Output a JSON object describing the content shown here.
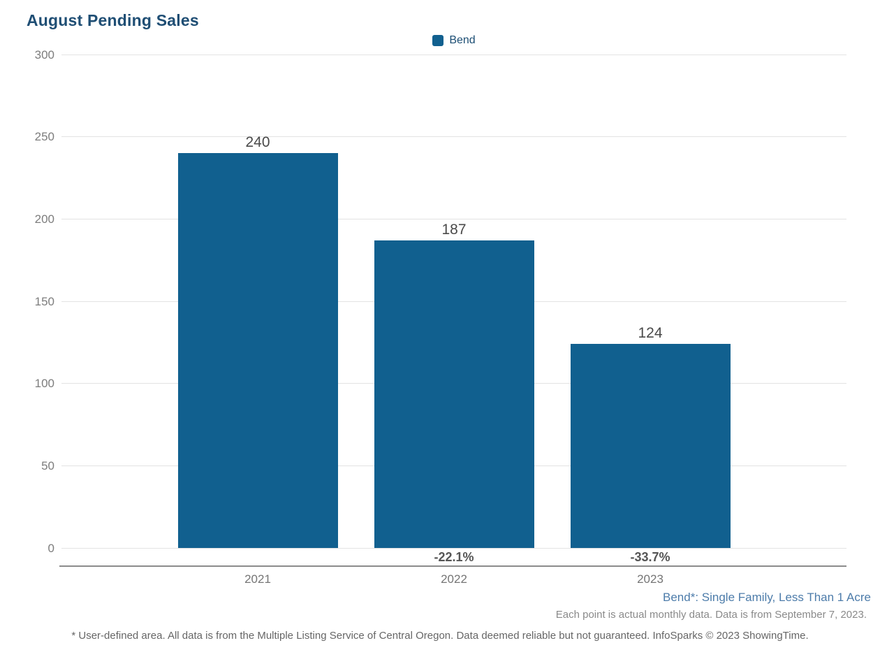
{
  "title": "August Pending Sales",
  "legend": {
    "label": "Bend",
    "swatch_color": "#11608f"
  },
  "chart_data": {
    "type": "bar",
    "title": "August Pending Sales",
    "categories": [
      "2021",
      "2022",
      "2023"
    ],
    "series": [
      {
        "name": "Bend",
        "values": [
          240,
          187,
          124
        ],
        "color": "#11608f"
      }
    ],
    "value_labels": [
      "240",
      "187",
      "124"
    ],
    "pct_change_labels": [
      "",
      "-22.1%",
      "-33.7%"
    ],
    "xlabel": "",
    "ylabel": "",
    "ylim": [
      0,
      300
    ],
    "yticks": [
      0,
      50,
      100,
      150,
      200,
      250,
      300
    ],
    "grid": true,
    "legend_position": "top-center"
  },
  "annotations": {
    "series_definition": "Bend*: Single Family, Less Than 1 Acre",
    "data_note": "Each point is actual monthly data. Data is from September 7, 2023.",
    "footer": "* User-defined area. All data is from the Multiple Listing Service of Central Oregon. Data deemed reliable but not guaranteed. InfoSparks © 2023 ShowingTime."
  },
  "colors": {
    "title_text": "#1f4e74",
    "legend_text": "#1c4e74",
    "bar": "#11608f",
    "grid_line": "#e3e3e3",
    "axis_line": "#8c8c8c",
    "tick_label": "#7d7d7d",
    "value_label": "#4a4a4a",
    "pct_label": "#555555",
    "category_label": "#757575",
    "series_definition_text": "#4d7caa",
    "data_note_text": "#8a8a8a",
    "footer_text": "#666666"
  }
}
